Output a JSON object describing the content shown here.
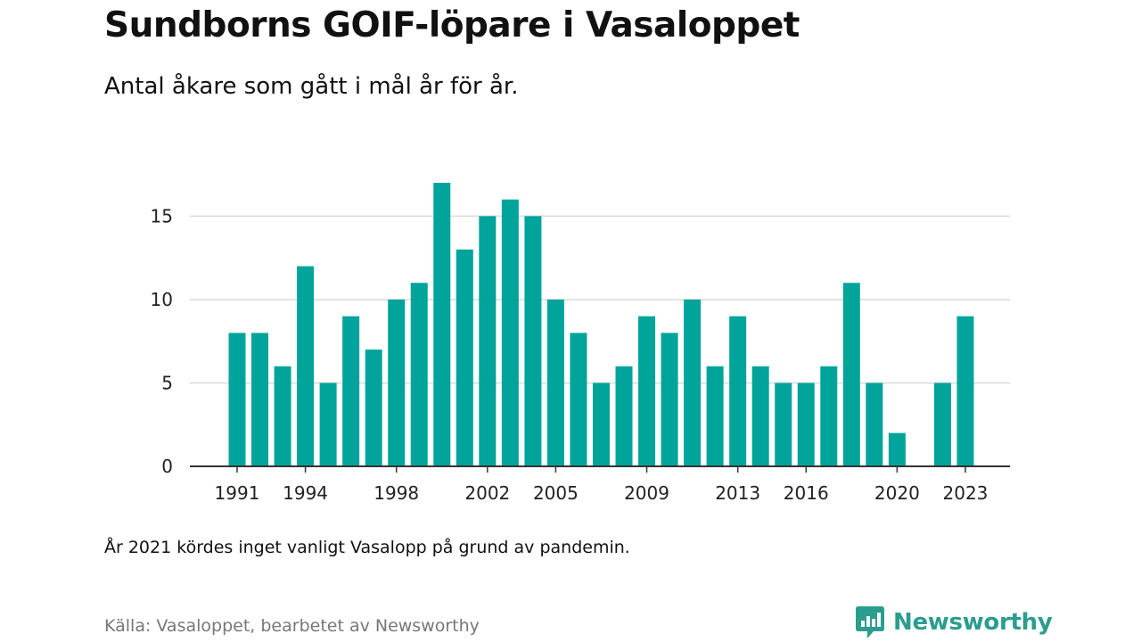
{
  "header": {
    "title": "Sundborns GOIF-löpare i Vasaloppet",
    "subtitle": "Antal åkare som gått i mål år för år."
  },
  "footer": {
    "note": "År 2021 kördes inget vanligt Vasalopp på grund av pandemin.",
    "source": "Källa: Vasaloppet, bearbetet av Newsworthy",
    "brand_name": "Newsworthy",
    "brand_icon": "newsworthy-logo-icon"
  },
  "colors": {
    "bar": "#00a49a",
    "brand": "#2a9d8f",
    "grid": "#d9d9d9",
    "axis": "#333333"
  },
  "chart_data": {
    "type": "bar",
    "x": [
      1991,
      1992,
      1993,
      1994,
      1995,
      1996,
      1997,
      1998,
      1999,
      2000,
      2001,
      2002,
      2003,
      2004,
      2005,
      2006,
      2007,
      2008,
      2009,
      2010,
      2011,
      2012,
      2013,
      2014,
      2015,
      2016,
      2017,
      2018,
      2019,
      2020,
      2021,
      2022,
      2023
    ],
    "values": [
      8,
      8,
      6,
      12,
      5,
      9,
      7,
      10,
      11,
      17,
      13,
      15,
      16,
      15,
      10,
      8,
      5,
      6,
      9,
      8,
      10,
      6,
      9,
      6,
      5,
      5,
      6,
      11,
      5,
      2,
      null,
      5,
      9
    ],
    "x_tick_labels": [
      "1991",
      "1994",
      "1998",
      "2002",
      "2005",
      "2009",
      "2013",
      "2016",
      "2020",
      "2023"
    ],
    "y_ticks": [
      0,
      5,
      10,
      15
    ],
    "ylim": [
      0,
      17
    ],
    "xlabel": "",
    "ylabel": "",
    "grid": true,
    "legend": "none"
  }
}
